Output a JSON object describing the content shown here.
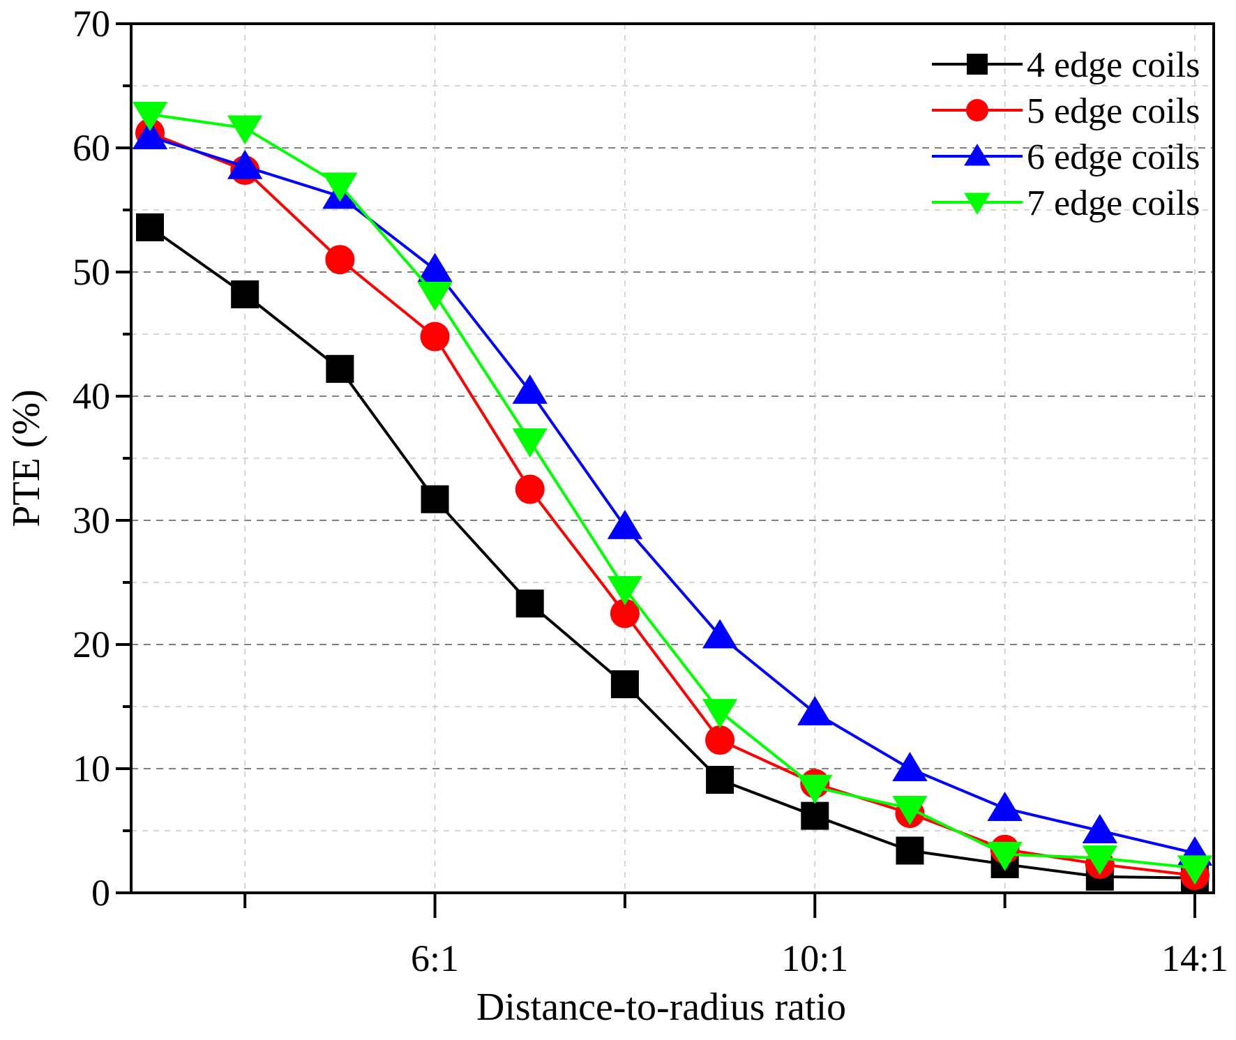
{
  "chart_data": {
    "type": "line",
    "title": "",
    "xlabel": "Distance-to-radius ratio",
    "ylabel": "PTE (%)",
    "x": [
      "3:1",
      "4:1",
      "5:1",
      "6:1",
      "7:1",
      "8:1",
      "9:1",
      "10:1",
      "11:1",
      "12:1",
      "13:1",
      "14:1"
    ],
    "x_tick_labels": [
      "6:1",
      "10:1",
      "14:1"
    ],
    "y_ticks": [
      0,
      10,
      20,
      30,
      40,
      50,
      60,
      70
    ],
    "ylim": [
      0,
      70
    ],
    "grid": true,
    "legend_position": "top-right",
    "series": [
      {
        "name": "4 edge coils",
        "color": "#000000",
        "marker": "square",
        "values": [
          53.6,
          48.2,
          42.2,
          31.7,
          23.3,
          16.8,
          9.1,
          6.2,
          3.4,
          2.3,
          1.3,
          1.2
        ]
      },
      {
        "name": "5 edge coils",
        "color": "#ff0000",
        "marker": "circle",
        "values": [
          61.2,
          58.2,
          51.0,
          44.8,
          32.5,
          22.5,
          12.3,
          8.8,
          6.4,
          3.5,
          2.3,
          1.4
        ]
      },
      {
        "name": "6 edge coils",
        "color": "#0000ff",
        "marker": "triangle-up",
        "values": [
          60.9,
          58.5,
          56.1,
          50.2,
          40.4,
          29.5,
          20.7,
          14.5,
          10.0,
          6.8,
          5.0,
          3.2
        ]
      },
      {
        "name": "7 edge coils",
        "color": "#00ff00",
        "marker": "triangle-down",
        "values": [
          62.7,
          61.6,
          57.0,
          48.2,
          36.4,
          24.5,
          14.6,
          8.5,
          6.8,
          3.1,
          2.8,
          2.0
        ]
      }
    ]
  }
}
